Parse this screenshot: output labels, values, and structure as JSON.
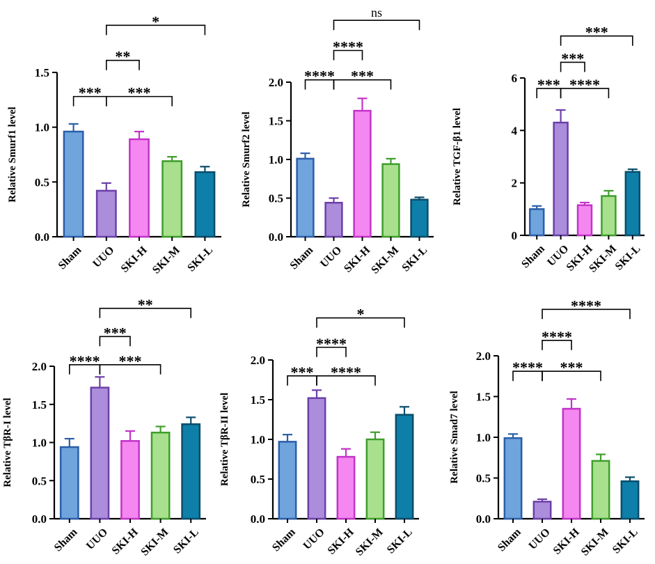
{
  "colors": {
    "Sham": {
      "fill": "#6fa4dd",
      "stroke": "#2b5ea8"
    },
    "UUO": {
      "fill": "#ab8ddb",
      "stroke": "#6b3fa8"
    },
    "SKI-H": {
      "fill": "#f587f0",
      "stroke": "#c233c8"
    },
    "SKI-M": {
      "fill": "#a8e08e",
      "stroke": "#3e9e2b"
    },
    "SKI-L": {
      "fill": "#0e7fa8",
      "stroke": "#0a4d6b"
    }
  },
  "chart_data": [
    {
      "type": "bar",
      "ylabel": "Relative Smurf1 level",
      "categories": [
        "Sham",
        "UUO",
        "SKI-H",
        "SKI-M",
        "SKI-L"
      ],
      "values": [
        0.96,
        0.42,
        0.89,
        0.69,
        0.59
      ],
      "errors": [
        0.07,
        0.07,
        0.07,
        0.04,
        0.05
      ],
      "ylim": [
        0,
        1.5
      ],
      "yticks": [
        "0.0",
        "0.5",
        "1.0",
        "1.5"
      ],
      "comparisons": [
        {
          "from": "Sham",
          "to": "UUO",
          "label": "***",
          "y": 1.28
        },
        {
          "from": "UUO",
          "to": "SKI-H",
          "label": "**",
          "y": 1.61
        },
        {
          "from": "UUO",
          "to": "SKI-M",
          "label": "***",
          "y": 1.28
        },
        {
          "from": "UUO",
          "to": "SKI-L",
          "label": "*",
          "y": 1.93
        }
      ]
    },
    {
      "type": "bar",
      "ylabel": "Relative Smurf2 level",
      "categories": [
        "Sham",
        "UUO",
        "SKI-H",
        "SKI-M",
        "SKI-L"
      ],
      "values": [
        1.01,
        0.44,
        1.63,
        0.94,
        0.48
      ],
      "errors": [
        0.07,
        0.06,
        0.16,
        0.07,
        0.03
      ],
      "ylim": [
        0,
        2.0
      ],
      "yticks": [
        "0.0",
        "0.5",
        "1.0",
        "1.5",
        "2.0"
      ],
      "comparisons": [
        {
          "from": "Sham",
          "to": "UUO",
          "label": "****",
          "y": 2.03
        },
        {
          "from": "UUO",
          "to": "SKI-H",
          "label": "****",
          "y": 2.41
        },
        {
          "from": "UUO",
          "to": "SKI-M",
          "label": "***",
          "y": 2.03
        },
        {
          "from": "UUO",
          "to": "SKI-L",
          "label": "ns",
          "y": 2.8
        }
      ]
    },
    {
      "type": "bar",
      "ylabel": "Relative TGF-β1 level",
      "categories": [
        "Sham",
        "UUO",
        "SKI-H",
        "SKI-M",
        "SKI-L"
      ],
      "values": [
        1.0,
        4.3,
        1.15,
        1.5,
        2.42
      ],
      "errors": [
        0.12,
        0.48,
        0.1,
        0.2,
        0.1
      ],
      "ylim": [
        0,
        6
      ],
      "yticks": [
        "0",
        "2",
        "4",
        "6"
      ],
      "comparisons": [
        {
          "from": "Sham",
          "to": "UUO",
          "label": "***",
          "y": 5.6
        },
        {
          "from": "UUO",
          "to": "SKI-H",
          "label": "***",
          "y": 6.6
        },
        {
          "from": "UUO",
          "to": "SKI-M",
          "label": "****",
          "y": 5.6
        },
        {
          "from": "UUO",
          "to": "SKI-L",
          "label": "***",
          "y": 7.6
        }
      ]
    },
    {
      "type": "bar",
      "ylabel": "Relative TβR-I  level",
      "categories": [
        "Sham",
        "UUO",
        "SKI-H",
        "SKI-M",
        "SKI-L"
      ],
      "values": [
        0.94,
        1.72,
        1.02,
        1.13,
        1.24
      ],
      "errors": [
        0.11,
        0.14,
        0.13,
        0.08,
        0.09
      ],
      "ylim": [
        0,
        2.0
      ],
      "yticks": [
        "0.0",
        "0.5",
        "1.0",
        "1.5",
        "2.0"
      ],
      "comparisons": [
        {
          "from": "Sham",
          "to": "UUO",
          "label": "****",
          "y": 2.02
        },
        {
          "from": "UUO",
          "to": "SKI-H",
          "label": "***",
          "y": 2.39
        },
        {
          "from": "UUO",
          "to": "SKI-M",
          "label": "***",
          "y": 2.02
        },
        {
          "from": "UUO",
          "to": "SKI-L",
          "label": "**",
          "y": 2.76
        }
      ]
    },
    {
      "type": "bar",
      "ylabel": "Relative TβR-II level",
      "categories": [
        "Sham",
        "UUO",
        "SKI-H",
        "SKI-M",
        "SKI-L"
      ],
      "values": [
        0.97,
        1.52,
        0.78,
        1.0,
        1.31
      ],
      "errors": [
        0.09,
        0.1,
        0.1,
        0.09,
        0.1
      ],
      "ylim": [
        0,
        2.0
      ],
      "yticks": [
        "0.0",
        "0.5",
        "1.0",
        "1.5",
        "2.0"
      ],
      "comparisons": [
        {
          "from": "Sham",
          "to": "UUO",
          "label": "***",
          "y": 1.8
        },
        {
          "from": "UUO",
          "to": "SKI-H",
          "label": "****",
          "y": 2.16
        },
        {
          "from": "UUO",
          "to": "SKI-M",
          "label": "****",
          "y": 1.8
        },
        {
          "from": "UUO",
          "to": "SKI-L",
          "label": "*",
          "y": 2.53
        }
      ]
    },
    {
      "type": "bar",
      "ylabel": "Relative Smad7 level",
      "categories": [
        "Sham",
        "UUO",
        "SKI-H",
        "SKI-M",
        "SKI-L"
      ],
      "values": [
        0.99,
        0.21,
        1.35,
        0.71,
        0.46
      ],
      "errors": [
        0.05,
        0.03,
        0.12,
        0.08,
        0.05
      ],
      "ylim": [
        0,
        2.0
      ],
      "yticks": [
        "0.0",
        "0.5",
        "1.0",
        "1.5",
        "2.0"
      ],
      "comparisons": [
        {
          "from": "Sham",
          "to": "UUO",
          "label": "****",
          "y": 1.81
        },
        {
          "from": "UUO",
          "to": "SKI-H",
          "label": "****",
          "y": 2.19
        },
        {
          "from": "UUO",
          "to": "SKI-M",
          "label": "***",
          "y": 1.81
        },
        {
          "from": "UUO",
          "to": "SKI-L",
          "label": "****",
          "y": 2.57
        }
      ]
    }
  ]
}
